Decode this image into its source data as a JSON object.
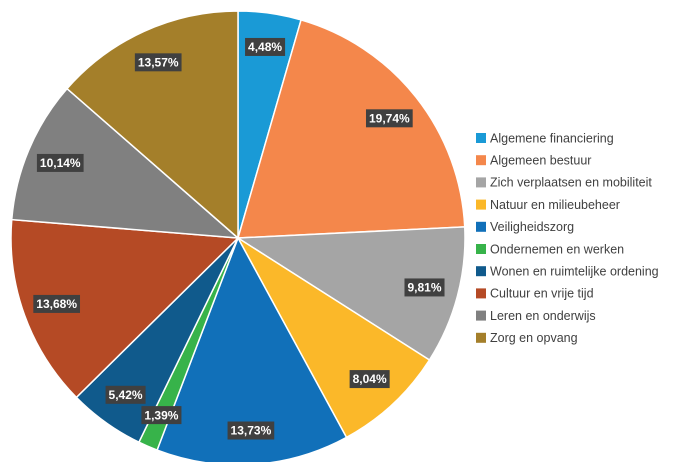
{
  "chart_data": {
    "type": "pie",
    "categories": [
      "Algemene financiering",
      "Algemeen bestuur",
      "Zich verplaatsen en mobiliteit",
      "Natuur en milieubeheer",
      "Veiligheidszorg",
      "Ondernemen en werken",
      "Wonen en ruimtelijke ordening",
      "Cultuur en vrije tijd",
      "Leren en onderwijs",
      "Zorg en opvang"
    ],
    "values": [
      4.48,
      19.74,
      9.81,
      8.04,
      13.73,
      1.39,
      5.42,
      13.68,
      10.14,
      13.57
    ],
    "value_labels": [
      "4,48%",
      "19,74%",
      "9,81%",
      "8,04%",
      "13,73%",
      "1,39%",
      "5,42%",
      "13,68%",
      "10,14%",
      "13,57%"
    ],
    "colors": [
      "#1a9ad6",
      "#f4874b",
      "#a5a5a5",
      "#fbb829",
      "#1170b9",
      "#37b34a",
      "#105a8c",
      "#b54a25",
      "#808080",
      "#a47f2a"
    ],
    "legend": "right"
  }
}
